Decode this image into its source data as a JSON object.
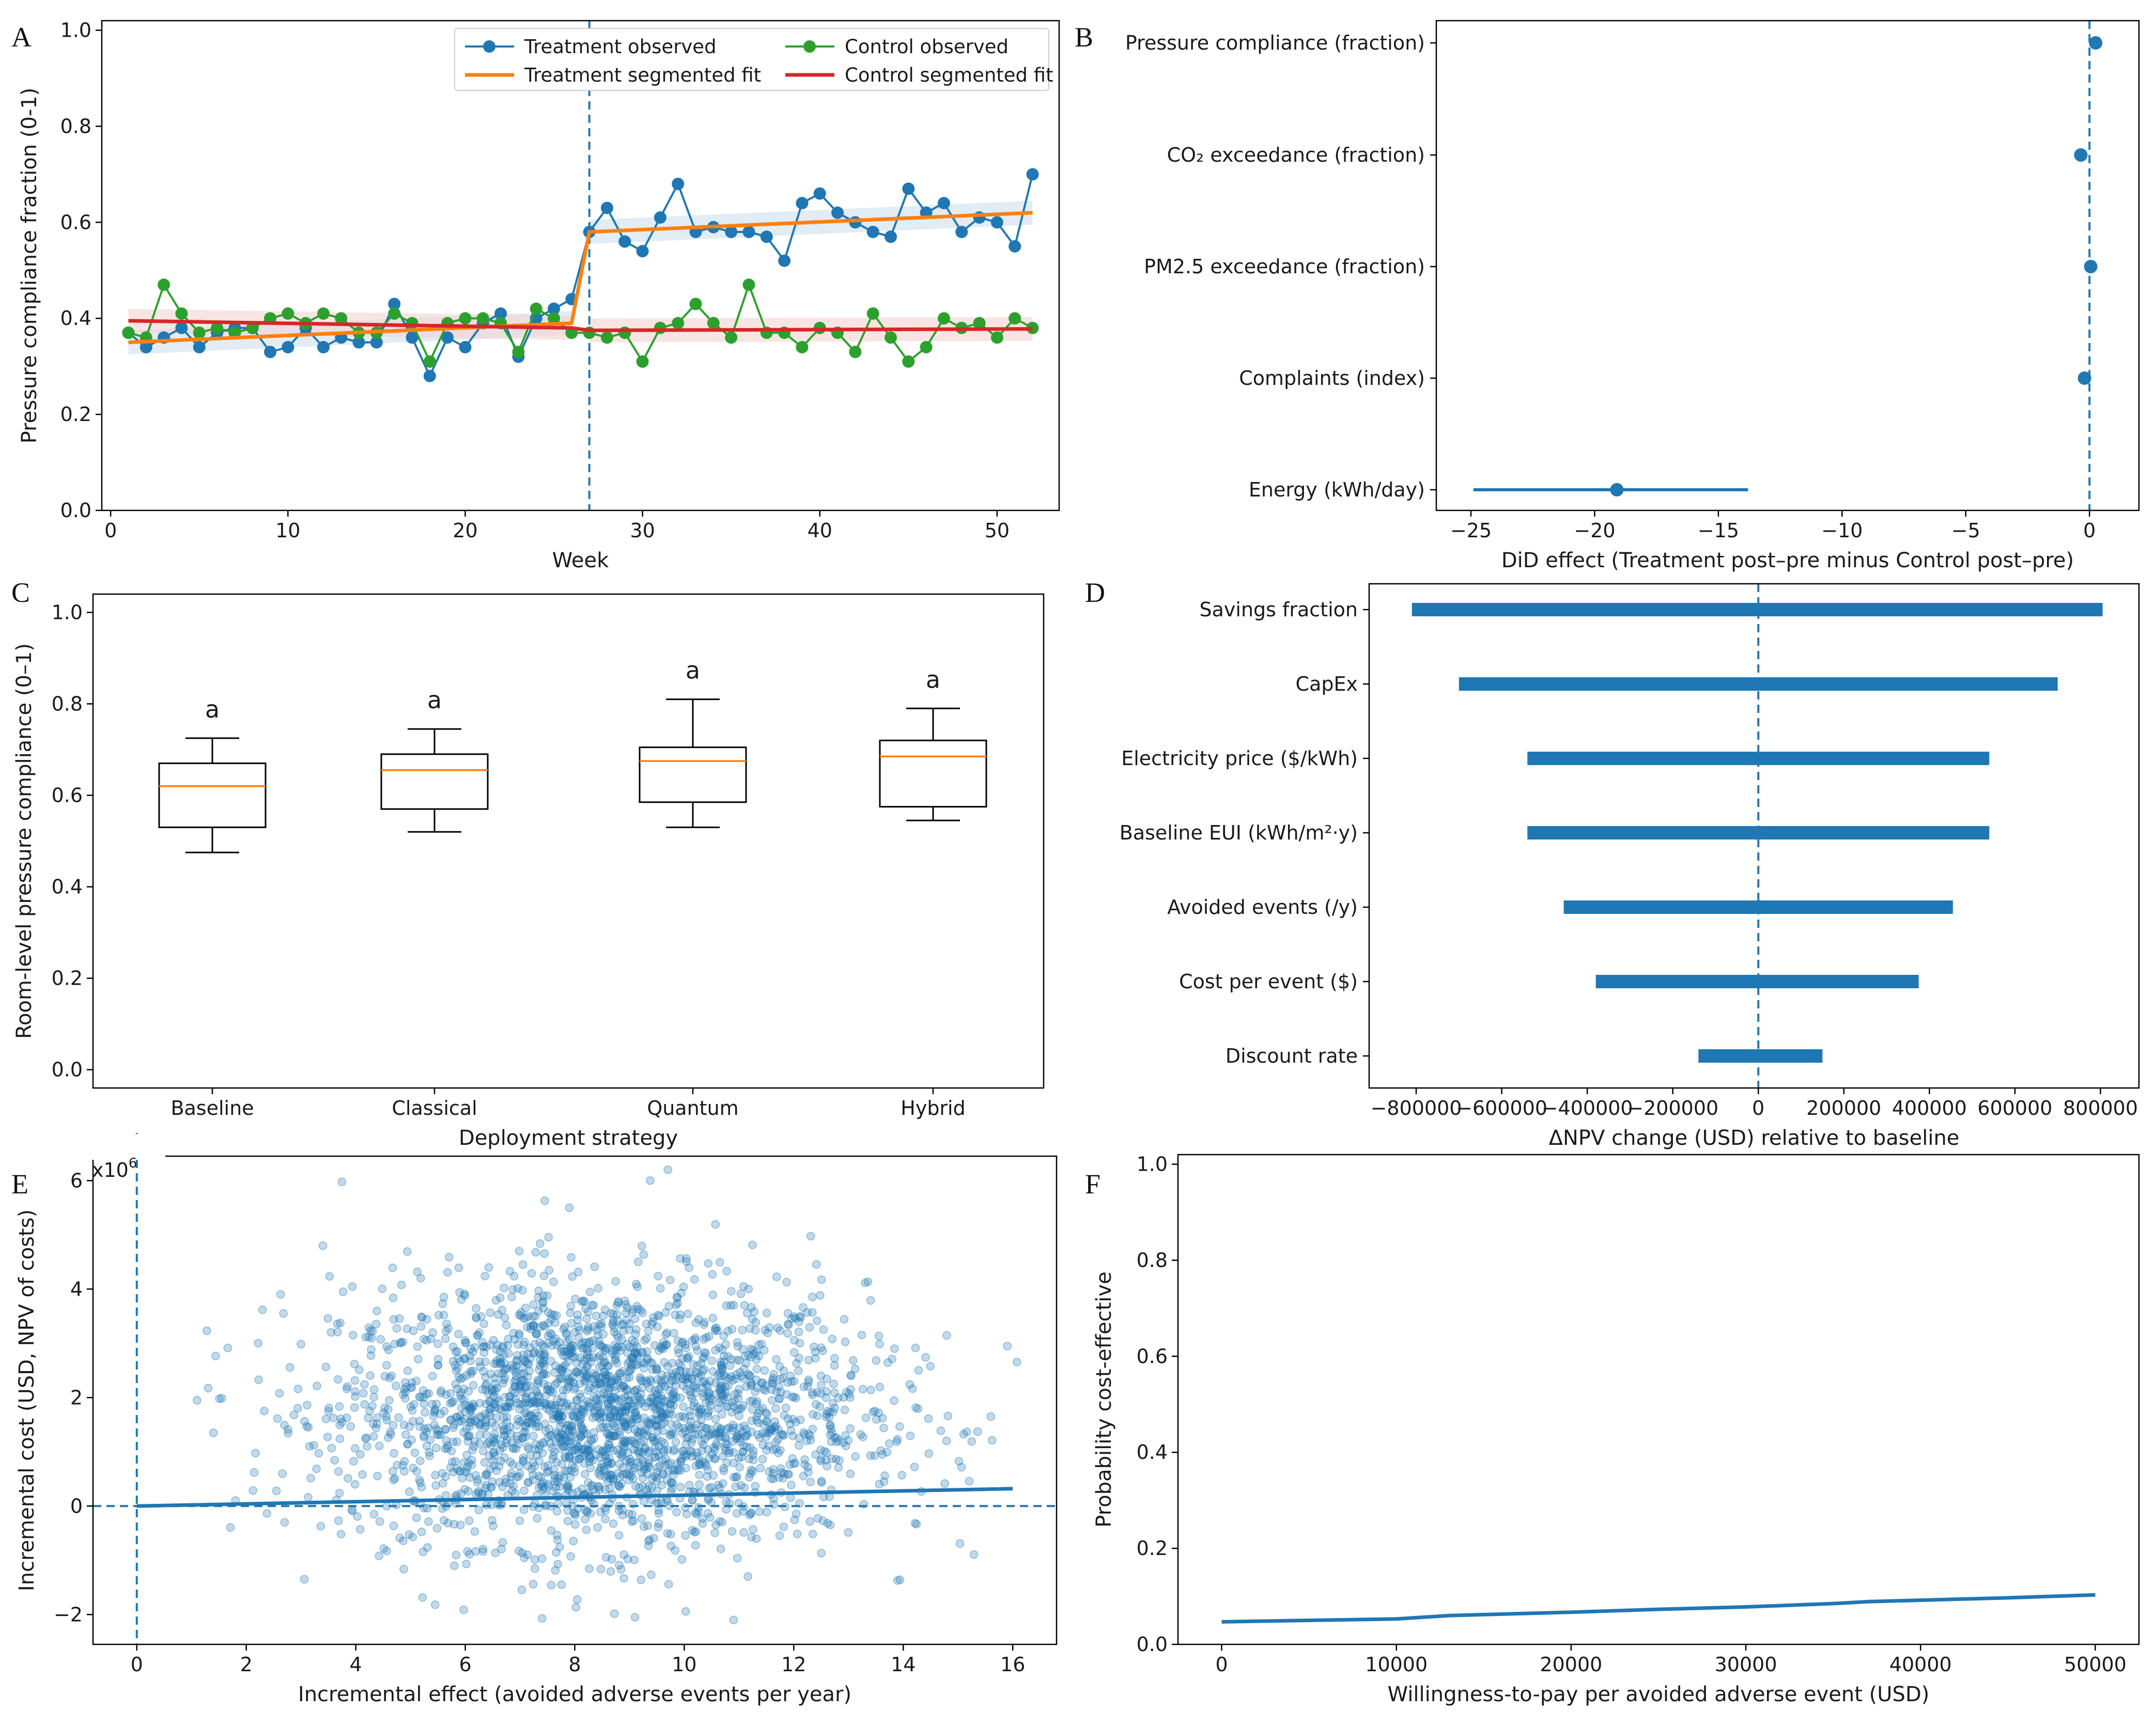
{
  "panels": {
    "a": "A",
    "b": "B",
    "c": "C",
    "d": "D",
    "e": "E",
    "f": "F"
  },
  "chart_data": [
    {
      "panel": "A",
      "type": "line",
      "xlabel": "Week",
      "ylabel": "Pressure compliance fraction (0-1)",
      "xlim": [
        -0.5,
        53.5
      ],
      "ylim": [
        0,
        1.02
      ],
      "xticks": [
        0,
        10,
        20,
        30,
        40,
        50
      ],
      "yticks": [
        0.0,
        0.2,
        0.4,
        0.6,
        0.8,
        1.0
      ],
      "vline": 27,
      "legend": {
        "treat_obs": "Treatment observed",
        "ctrl_obs": "Control observed",
        "treat_fit": "Treatment segmented fit",
        "ctrl_fit": "Control segmented fit"
      },
      "colors": {
        "treat": "#1f77b4",
        "ctrl": "#2ca02c",
        "treat_fit": "#ff7f0e",
        "ctrl_fit": "#d62728"
      },
      "x": [
        1,
        2,
        3,
        4,
        5,
        6,
        7,
        8,
        9,
        10,
        11,
        12,
        13,
        14,
        15,
        16,
        17,
        18,
        19,
        20,
        21,
        22,
        23,
        24,
        25,
        26,
        27,
        28,
        29,
        30,
        31,
        32,
        33,
        34,
        35,
        36,
        37,
        38,
        39,
        40,
        41,
        42,
        43,
        44,
        45,
        46,
        47,
        48,
        49,
        50,
        51,
        52
      ],
      "series": [
        {
          "name": "Treatment observed",
          "values": [
            0.37,
            0.34,
            0.36,
            0.38,
            0.34,
            0.37,
            0.38,
            0.38,
            0.33,
            0.34,
            0.38,
            0.34,
            0.36,
            0.35,
            0.35,
            0.43,
            0.36,
            0.28,
            0.36,
            0.34,
            0.39,
            0.41,
            0.32,
            0.4,
            0.42,
            0.44,
            0.58,
            0.63,
            0.56,
            0.54,
            0.61,
            0.68,
            0.58,
            0.59,
            0.58,
            0.58,
            0.57,
            0.52,
            0.64,
            0.66,
            0.62,
            0.6,
            0.58,
            0.57,
            0.67,
            0.62,
            0.64,
            0.58,
            0.61,
            0.6,
            0.55,
            0.7
          ]
        },
        {
          "name": "Control observed",
          "values": [
            0.37,
            0.36,
            0.47,
            0.41,
            0.37,
            0.38,
            0.37,
            0.38,
            0.4,
            0.41,
            0.39,
            0.41,
            0.4,
            0.37,
            0.37,
            0.41,
            0.39,
            0.31,
            0.39,
            0.4,
            0.4,
            0.39,
            0.33,
            0.42,
            0.4,
            0.37,
            0.37,
            0.36,
            0.37,
            0.31,
            0.38,
            0.39,
            0.43,
            0.39,
            0.36,
            0.47,
            0.37,
            0.37,
            0.34,
            0.38,
            0.37,
            0.33,
            0.41,
            0.36,
            0.31,
            0.34,
            0.4,
            0.38,
            0.39,
            0.36,
            0.4,
            0.38
          ]
        }
      ],
      "fits": [
        {
          "name": "Treatment segmented fit",
          "segments": [
            [
              1,
              0.35,
              26,
              0.39
            ],
            [
              27,
              0.58,
              52,
              0.62
            ]
          ]
        },
        {
          "name": "Control segmented fit",
          "segments": [
            [
              1,
              0.395,
              26,
              0.38
            ],
            [
              27,
              0.375,
              52,
              0.378
            ]
          ]
        }
      ]
    },
    {
      "panel": "B",
      "type": "forest",
      "xlabel": "DiD effect (Treatment post–pre minus Control post–pre)",
      "xlim": [
        -26.4,
        2
      ],
      "xticks": [
        -25,
        -20,
        -15,
        -10,
        -5,
        0
      ],
      "categories": [
        "Pressure compliance (fraction)",
        "CO₂ exceedance (fraction)",
        "PM2.5 exceedance (fraction)",
        "Complaints (index)",
        "Energy (kWh/day)"
      ],
      "values": [
        0.25,
        -0.35,
        0.05,
        -0.2,
        -19.1
      ],
      "ci_low": [
        0.25,
        -0.35,
        0.05,
        -0.2,
        -24.9
      ],
      "ci_high": [
        0.25,
        -0.35,
        0.05,
        -0.2,
        -13.8
      ]
    },
    {
      "panel": "C",
      "type": "box",
      "xlabel": "Deployment strategy",
      "ylabel": "Room-level pressure compliance (0–1)",
      "ylim": [
        -0.04,
        1.04
      ],
      "yticks": [
        0.0,
        0.2,
        0.4,
        0.6,
        0.8,
        1.0
      ],
      "categories": [
        "Baseline",
        "Classical",
        "Quantum",
        "Hybrid"
      ],
      "boxes": [
        {
          "min": 0.475,
          "q1": 0.53,
          "median": 0.62,
          "q3": 0.67,
          "max": 0.725,
          "letter": "a"
        },
        {
          "min": 0.52,
          "q1": 0.57,
          "median": 0.655,
          "q3": 0.69,
          "max": 0.745,
          "letter": "a"
        },
        {
          "min": 0.53,
          "q1": 0.585,
          "median": 0.675,
          "q3": 0.705,
          "max": 0.81,
          "letter": "a"
        },
        {
          "min": 0.545,
          "q1": 0.575,
          "median": 0.685,
          "q3": 0.72,
          "max": 0.79,
          "letter": "a"
        }
      ]
    },
    {
      "panel": "D",
      "type": "bar",
      "orientation": "horizontal",
      "xlabel": "ΔNPV change (USD) relative to baseline",
      "xlim": [
        -910000,
        890000
      ],
      "xticks": [
        -800000,
        -600000,
        -400000,
        -200000,
        0,
        200000,
        400000,
        600000,
        800000
      ],
      "categories": [
        "Savings fraction",
        "CapEx",
        "Electricity price ($/kWh)",
        "Baseline EUI (kWh/m²·y)",
        "Avoided events (/y)",
        "Cost per event ($)",
        "Discount rate"
      ],
      "low": [
        -810000,
        -700000,
        -540000,
        -540000,
        -455000,
        -380000,
        -140000
      ],
      "high": [
        805000,
        700000,
        540000,
        540000,
        455000,
        375000,
        150000
      ]
    },
    {
      "panel": "E",
      "type": "scatter",
      "xlabel": "Incremental effect (avoided adverse events per year)",
      "ylabel": "Incremental cost (USD, NPV of costs)",
      "offset_text": "x10",
      "offset_exp": "6",
      "xlim": [
        -0.8,
        16.8
      ],
      "ylim": [
        -2.55,
        6.45
      ],
      "xticks": [
        0,
        2,
        4,
        6,
        8,
        10,
        12,
        14,
        16
      ],
      "yticks": [
        -2,
        0,
        2,
        4,
        6
      ],
      "n_points": 2600,
      "center": [
        8.5,
        1.7
      ],
      "sd": [
        2.4,
        1.2
      ],
      "trend": [
        [
          0,
          0.0
        ],
        [
          16,
          0.32
        ]
      ],
      "outliers": [
        [
          9.7,
          6.2
        ],
        [
          7.9,
          5.5
        ],
        [
          3.4,
          4.8
        ],
        [
          1.1,
          1.95
        ],
        [
          1.4,
          1.35
        ],
        [
          2.7,
          -0.3
        ],
        [
          15.9,
          2.95
        ],
        [
          15.6,
          1.65
        ],
        [
          10.9,
          -2.1
        ],
        [
          9.1,
          -2.05
        ],
        [
          5.8,
          -1.1
        ]
      ]
    },
    {
      "panel": "F",
      "type": "line",
      "xlabel": "Willingness-to-pay per avoided adverse event (USD)",
      "ylabel": "Probability cost-effective",
      "xlim": [
        -2500,
        52500
      ],
      "ylim": [
        0,
        1.02
      ],
      "xticks": [
        0,
        10000,
        20000,
        30000,
        40000,
        50000
      ],
      "yticks": [
        0.0,
        0.2,
        0.4,
        0.6,
        0.8,
        1.0
      ],
      "x": [
        0,
        5000,
        10000,
        13000,
        15000,
        20000,
        25000,
        30000,
        35000,
        37000,
        40000,
        45000,
        50000
      ],
      "values": [
        0.047,
        0.05,
        0.053,
        0.06,
        0.062,
        0.067,
        0.073,
        0.078,
        0.085,
        0.089,
        0.092,
        0.097,
        0.103
      ]
    }
  ]
}
